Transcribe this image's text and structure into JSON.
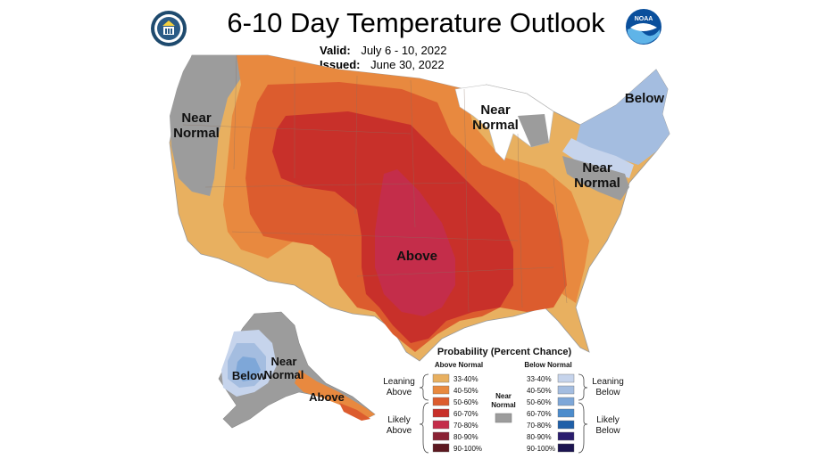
{
  "header": {
    "title": "6-10 Day Temperature Outlook",
    "valid_label": "Valid:",
    "valid_value": "July 6 - 10, 2022",
    "issued_label": "Issued:",
    "issued_value": "June 30, 2022"
  },
  "logos": {
    "left_icon": "commerce-seal-icon",
    "right_icon": "noaa-logo-icon",
    "noaa_text": "NOAA"
  },
  "map_labels": {
    "near_normal_west": [
      "Near",
      "Normal"
    ],
    "near_normal_lakes": [
      "Near",
      "Normal"
    ],
    "near_normal_east": [
      "Near",
      "Normal"
    ],
    "below_northeast": "Below",
    "above_center": "Above",
    "near_normal_alaska": [
      "Near",
      "Normal"
    ],
    "below_alaska": "Below",
    "above_alaska": "Above"
  },
  "legend": {
    "title": "Probability (Percent Chance)",
    "above_header": "Above Normal",
    "below_header": "Below Normal",
    "near_header": [
      "Near",
      "Normal"
    ],
    "leaning_above": [
      "Leaning",
      "Above"
    ],
    "likely_above": [
      "Likely",
      "Above"
    ],
    "leaning_below": [
      "Leaning",
      "Below"
    ],
    "likely_below": [
      "Likely",
      "Below"
    ],
    "ranges": [
      "33-40%",
      "40-50%",
      "50-60%",
      "60-70%",
      "70-80%",
      "80-90%",
      "90-100%"
    ],
    "above_colors": [
      "#e8b060",
      "#e8893f",
      "#dc5c2e",
      "#c8302a",
      "#c42d4a",
      "#8a2234",
      "#5c1820"
    ],
    "below_colors": [
      "#c6d4ec",
      "#a4bde0",
      "#7ea7d8",
      "#4c8ccc",
      "#1f5fa8",
      "#2a1d6e",
      "#1b1450"
    ],
    "near_color": "#9c9c9c"
  }
}
